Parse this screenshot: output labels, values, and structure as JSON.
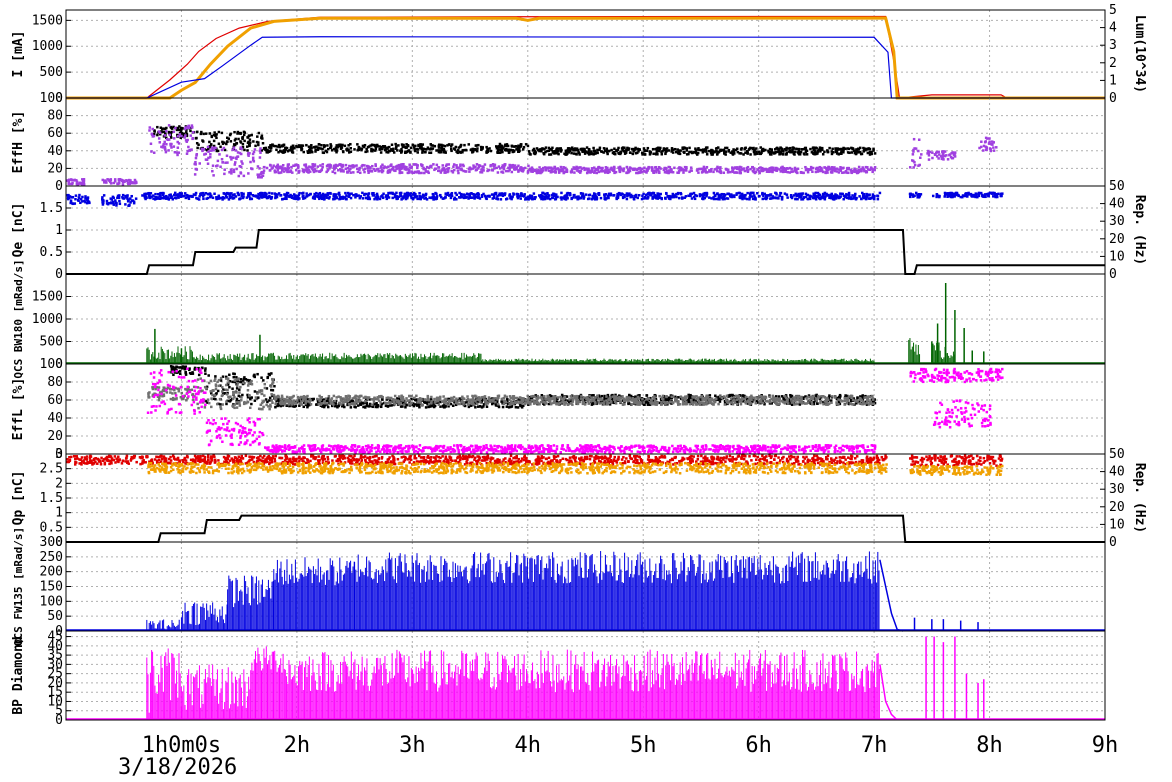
{
  "date": "3/18/2026",
  "colors": {
    "orange": "#f0a000",
    "red": "#e00000",
    "blue": "#0000e0",
    "purple": "#a040e0",
    "black": "#000000",
    "green": "#006400",
    "gray": "#707070",
    "magenta": "#ff00ff",
    "grid": "#b0b0b0",
    "frame": "#000000"
  },
  "time_axis": {
    "start_hours": 0,
    "end_hours": 9,
    "tick_labels": [
      {
        "hour": 1,
        "text": "1h0m0s"
      },
      {
        "hour": 2,
        "text": "2h"
      },
      {
        "hour": 3,
        "text": "3h"
      },
      {
        "hour": 4,
        "text": "4h"
      },
      {
        "hour": 5,
        "text": "5h"
      },
      {
        "hour": 6,
        "text": "6h"
      },
      {
        "hour": 7,
        "text": "7h"
      },
      {
        "hour": 8,
        "text": "8h"
      },
      {
        "hour": 9,
        "text": "9h"
      }
    ]
  },
  "chart_data": [
    {
      "type": "line",
      "panel": "current-luminosity",
      "ylabel": "I [mA]",
      "ylim": [
        0,
        1700
      ],
      "yticks": [
        0,
        500,
        1000,
        1500
      ],
      "y2label": "Lum(10^34)",
      "y2lim": [
        0,
        5
      ],
      "y2ticks": [
        0,
        1,
        2,
        3,
        4,
        5
      ],
      "series": [
        {
          "color": "#e00000",
          "axis": "left",
          "points": [
            [
              0,
              0
            ],
            [
              0.7,
              0
            ],
            [
              0.9,
              350
            ],
            [
              1.05,
              650
            ],
            [
              1.15,
              900
            ],
            [
              1.3,
              1150
            ],
            [
              1.5,
              1350
            ],
            [
              1.75,
              1480
            ],
            [
              2.2,
              1560
            ],
            [
              4,
              1570
            ],
            [
              6,
              1575
            ],
            [
              7.1,
              1575
            ],
            [
              7.18,
              600
            ],
            [
              7.22,
              0
            ],
            [
              7.5,
              60
            ],
            [
              8.1,
              60
            ],
            [
              8.15,
              0
            ],
            [
              9,
              0
            ]
          ]
        },
        {
          "color": "#f0a000",
          "axis": "left",
          "points": [
            [
              0,
              0
            ],
            [
              0.9,
              0
            ],
            [
              1.0,
              150
            ],
            [
              1.12,
              300
            ],
            [
              1.25,
              650
            ],
            [
              1.4,
              1000
            ],
            [
              1.6,
              1350
            ],
            [
              1.8,
              1480
            ],
            [
              2.2,
              1540
            ],
            [
              3.9,
              1540
            ],
            [
              4,
              1500
            ],
            [
              4.1,
              1540
            ],
            [
              7.1,
              1545
            ],
            [
              7.17,
              900
            ],
            [
              7.2,
              0
            ],
            [
              9,
              0
            ]
          ]
        },
        {
          "color": "#0000e0",
          "axis": "right",
          "points": [
            [
              0,
              0
            ],
            [
              0.7,
              0
            ],
            [
              1.0,
              0.9
            ],
            [
              1.2,
              1.1
            ],
            [
              1.35,
              1.8
            ],
            [
              1.6,
              3.0
            ],
            [
              1.7,
              3.45
            ],
            [
              2.2,
              3.48
            ],
            [
              7.0,
              3.45
            ],
            [
              7.12,
              2.6
            ],
            [
              7.15,
              0
            ],
            [
              9,
              0
            ]
          ]
        }
      ]
    },
    {
      "type": "scatter",
      "panel": "eff-h",
      "ylabel": "EffH [%]",
      "ylim": [
        0,
        100
      ],
      "yticks": [
        0,
        20,
        40,
        60,
        80,
        100
      ],
      "series": [
        {
          "color": "#000000",
          "segments": [
            [
              0.75,
              1.1,
              55,
              68,
              4
            ],
            [
              1.1,
              1.7,
              40,
              62,
              5
            ],
            [
              1.7,
              4.0,
              38,
              48,
              3
            ],
            [
              4.0,
              7.0,
              36,
              44,
              3
            ]
          ]
        },
        {
          "color": "#a040e0",
          "segments": [
            [
              0.0,
              0.15,
              2,
              8,
              2
            ],
            [
              0.3,
              0.6,
              2,
              8,
              2
            ],
            [
              0.7,
              1.1,
              35,
              70,
              8
            ],
            [
              1.1,
              1.7,
              10,
              45,
              8
            ],
            [
              1.7,
              4.0,
              15,
              25,
              3
            ],
            [
              4.0,
              7.0,
              15,
              22,
              3
            ],
            [
              7.3,
              7.4,
              20,
              55,
              6
            ],
            [
              7.45,
              7.7,
              30,
              40,
              4
            ],
            [
              7.9,
              8.05,
              40,
              55,
              4
            ]
          ]
        }
      ]
    },
    {
      "type": "scatter",
      "panel": "qe-rep",
      "ylabel": "Qe [nC]",
      "ylim": [
        0,
        2
      ],
      "yticks": [
        0,
        0.5,
        1,
        1.5
      ],
      "y2label": "Rep. (Hz)",
      "y2lim": [
        0,
        50
      ],
      "y2ticks": [
        0,
        10,
        20,
        30,
        40,
        50
      ],
      "series": [
        {
          "color": "#0000e0",
          "axis": "left",
          "segments": [
            [
              0.0,
              0.2,
              1.6,
              1.8,
              0.06
            ],
            [
              0.3,
              0.6,
              1.55,
              1.8,
              0.06
            ],
            [
              0.65,
              7.05,
              1.7,
              1.85,
              0.05
            ],
            [
              7.3,
              7.4,
              1.7,
              1.85,
              0.05
            ],
            [
              7.5,
              8.1,
              1.75,
              1.85,
              0.04
            ]
          ]
        },
        {
          "color": "#000000",
          "axis": "right",
          "step": [
            [
              0,
              0
            ],
            [
              0.7,
              0
            ],
            [
              0.72,
              5
            ],
            [
              1.1,
              5
            ],
            [
              1.12,
              12.5
            ],
            [
              1.45,
              12.5
            ],
            [
              1.47,
              15
            ],
            [
              1.65,
              15
            ],
            [
              1.67,
              25
            ],
            [
              7.25,
              25
            ],
            [
              7.27,
              0
            ],
            [
              7.35,
              0
            ],
            [
              7.37,
              5
            ],
            [
              9,
              5
            ]
          ]
        }
      ]
    },
    {
      "type": "area",
      "panel": "qcs-bw180",
      "ylabel": "QCS BW180 [mRad/s]",
      "ylim": [
        0,
        2000
      ],
      "yticks": [
        0,
        500,
        1000,
        1500
      ],
      "series": [
        {
          "color": "#006400",
          "spikes": [
            [
              0.7,
              1.1,
              100,
              400
            ],
            [
              1.1,
              1.9,
              80,
              250
            ],
            [
              1.9,
              3.6,
              100,
              250
            ],
            [
              3.6,
              7.0,
              60,
              120
            ],
            [
              7.3,
              7.4,
              200,
              600
            ],
            [
              7.5,
              7.7,
              100,
              500
            ]
          ],
          "peaks": [
            [
              0.77,
              780
            ],
            [
              1.0,
              350
            ],
            [
              1.68,
              650
            ],
            [
              7.5,
              500
            ],
            [
              7.55,
              900
            ],
            [
              7.62,
              1800
            ],
            [
              7.7,
              1200
            ],
            [
              7.78,
              800
            ],
            [
              7.85,
              300
            ],
            [
              7.95,
              280
            ]
          ]
        }
      ]
    },
    {
      "type": "scatter",
      "panel": "eff-l",
      "ylabel": "EffL [%]",
      "ylim": [
        0,
        100
      ],
      "yticks": [
        0,
        20,
        40,
        60,
        80,
        100
      ],
      "series": [
        {
          "color": "#000000",
          "segments": [
            [
              0.9,
              1.2,
              88,
              98,
              3
            ],
            [
              1.2,
              1.8,
              55,
              90,
              6
            ],
            [
              1.8,
              4.0,
              52,
              62,
              3
            ],
            [
              4.0,
              7.0,
              55,
              66,
              3
            ]
          ]
        },
        {
          "color": "#707070",
          "segments": [
            [
              0.7,
              1.1,
              60,
              75,
              5
            ],
            [
              1.1,
              1.8,
              50,
              85,
              6
            ],
            [
              1.8,
              7.0,
              55,
              65,
              3
            ]
          ]
        },
        {
          "color": "#ff00ff",
          "segments": [
            [
              0.7,
              1.2,
              45,
              95,
              10
            ],
            [
              1.2,
              1.7,
              10,
              40,
              8
            ],
            [
              1.7,
              7.0,
              2,
              10,
              3
            ],
            [
              7.3,
              8.1,
              80,
              95,
              5
            ],
            [
              7.5,
              8.0,
              30,
              60,
              10
            ]
          ]
        }
      ]
    },
    {
      "type": "scatter",
      "panel": "qp-rep",
      "ylabel": "Qp [nC]",
      "ylim": [
        0,
        3
      ],
      "yticks": [
        0,
        0.5,
        1,
        1.5,
        2,
        2.5,
        3
      ],
      "y2label": "Rep. (Hz)",
      "y2lim": [
        0,
        50
      ],
      "y2ticks": [
        0,
        10,
        20,
        30,
        40,
        50
      ],
      "series": [
        {
          "color": "#e00000",
          "axis": "left",
          "segments": [
            [
              0.0,
              7.1,
              2.65,
              2.95,
              0.05
            ],
            [
              7.3,
              8.1,
              2.6,
              2.95,
              0.05
            ]
          ]
        },
        {
          "color": "#f0a000",
          "axis": "left",
          "segments": [
            [
              0.7,
              7.1,
              2.35,
              2.7,
              0.05
            ],
            [
              7.3,
              8.1,
              2.3,
              2.6,
              0.05
            ]
          ]
        },
        {
          "color": "#000000",
          "axis": "right",
          "step": [
            [
              0,
              0
            ],
            [
              0.8,
              0
            ],
            [
              0.82,
              5
            ],
            [
              1.2,
              5
            ],
            [
              1.22,
              12.5
            ],
            [
              1.5,
              12.5
            ],
            [
              1.52,
              15
            ],
            [
              7.25,
              15
            ],
            [
              7.27,
              0
            ],
            [
              9,
              0
            ]
          ]
        }
      ]
    },
    {
      "type": "area",
      "panel": "qcs-fw135",
      "ylabel": "QCS FW135 [mRad/s]",
      "ylim": [
        0,
        300
      ],
      "yticks": [
        0,
        50,
        100,
        150,
        200,
        250,
        300
      ],
      "series": [
        {
          "color": "#0000e0",
          "spikes": [
            [
              0.7,
              1.0,
              0,
              40
            ],
            [
              1.0,
              1.4,
              20,
              110
            ],
            [
              1.4,
              1.8,
              80,
              190
            ],
            [
              1.8,
              2.5,
              150,
              250
            ],
            [
              2.5,
              7.05,
              160,
              270
            ]
          ],
          "tail": [
            [
              7.05,
              240
            ],
            [
              7.1,
              150
            ],
            [
              7.15,
              60
            ],
            [
              7.2,
              5
            ],
            [
              7.25,
              0
            ]
          ],
          "peaks": [
            [
              7.35,
              45
            ],
            [
              7.5,
              40
            ],
            [
              7.6,
              40
            ],
            [
              7.75,
              35
            ],
            [
              7.9,
              30
            ]
          ]
        }
      ]
    },
    {
      "type": "area",
      "panel": "bp-diamond",
      "ylabel": "BP Diamond",
      "ylim": [
        0,
        48
      ],
      "yticks": [
        0,
        5,
        10,
        15,
        20,
        25,
        30,
        35,
        40,
        45
      ],
      "series": [
        {
          "color": "#ff00ff",
          "spikes": [
            [
              0.7,
              0.75,
              0,
              45
            ],
            [
              0.75,
              1.0,
              10,
              40
            ],
            [
              1.0,
              1.6,
              5,
              30
            ],
            [
              1.6,
              1.9,
              25,
              40
            ],
            [
              1.9,
              7.05,
              15,
              38
            ]
          ],
          "tail": [
            [
              7.05,
              30
            ],
            [
              7.1,
              10
            ],
            [
              7.15,
              3
            ],
            [
              7.2,
              0
            ]
          ],
          "peaks": [
            [
              7.45,
              45
            ],
            [
              7.52,
              45
            ],
            [
              7.6,
              42
            ],
            [
              7.7,
              45
            ],
            [
              7.8,
              25
            ],
            [
              7.9,
              20
            ],
            [
              7.95,
              22
            ]
          ]
        }
      ]
    }
  ]
}
